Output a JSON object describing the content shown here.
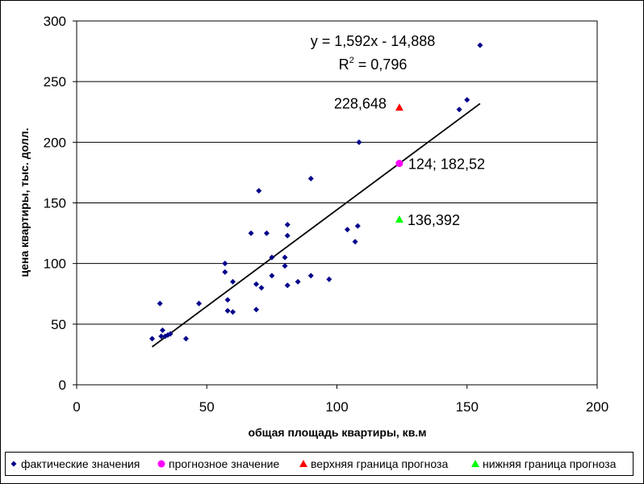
{
  "chart_data": {
    "type": "scatter",
    "xlabel": "общая площадь квартиры, кв.м",
    "ylabel": "цена квартиры, тыс. долл.",
    "xlim": [
      0,
      200
    ],
    "ylim": [
      0,
      300
    ],
    "x_ticks": [
      0,
      50,
      100,
      150,
      200
    ],
    "y_ticks": [
      0,
      50,
      100,
      150,
      200,
      250,
      300
    ],
    "grid": "horizontal",
    "legend_position": "bottom",
    "series": [
      {
        "name": "фактические значения",
        "marker": "diamond",
        "color": "#00008B",
        "points": [
          [
            29,
            38
          ],
          [
            32,
            67
          ],
          [
            32.5,
            40
          ],
          [
            33,
            45
          ],
          [
            34,
            40
          ],
          [
            35,
            41
          ],
          [
            36,
            42
          ],
          [
            42,
            38
          ],
          [
            47,
            67
          ],
          [
            57,
            100
          ],
          [
            57,
            93
          ],
          [
            58,
            70
          ],
          [
            58,
            61
          ],
          [
            60,
            85
          ],
          [
            60,
            60
          ],
          [
            67,
            125
          ],
          [
            69,
            62
          ],
          [
            69,
            83
          ],
          [
            70,
            160
          ],
          [
            71,
            80
          ],
          [
            73,
            125
          ],
          [
            75,
            105
          ],
          [
            75,
            90
          ],
          [
            80,
            105
          ],
          [
            80,
            98
          ],
          [
            81,
            132
          ],
          [
            81,
            123
          ],
          [
            81,
            82
          ],
          [
            85,
            85
          ],
          [
            90,
            170
          ],
          [
            90,
            90
          ],
          [
            97,
            87
          ],
          [
            104,
            128
          ],
          [
            107,
            118
          ],
          [
            108,
            131
          ],
          [
            108.5,
            200
          ],
          [
            147,
            227
          ],
          [
            150,
            235
          ],
          [
            155,
            280
          ]
        ]
      },
      {
        "name": "прогнозное значение",
        "marker": "circle",
        "color": "#FF00FF",
        "points": [
          [
            124,
            182.52
          ]
        ],
        "label": "124; 182,52"
      },
      {
        "name": "верхняя граница прогноза",
        "marker": "triangle",
        "color": "#FF0000",
        "points": [
          [
            124,
            228.648
          ]
        ],
        "label": "228,648"
      },
      {
        "name": "нижняя граница прогноза",
        "marker": "triangle",
        "color": "#00FF00",
        "points": [
          [
            124,
            136.392
          ]
        ],
        "label": "136,392"
      }
    ],
    "trendline": {
      "slope": 1.592,
      "intercept": -14.888,
      "x_range": [
        29,
        155
      ],
      "color": "#000000",
      "equation": "y = 1,592x - 14,888",
      "r2_prefix": "R",
      "r2_sup": "2",
      "r2_suffix": " = 0,796"
    }
  }
}
